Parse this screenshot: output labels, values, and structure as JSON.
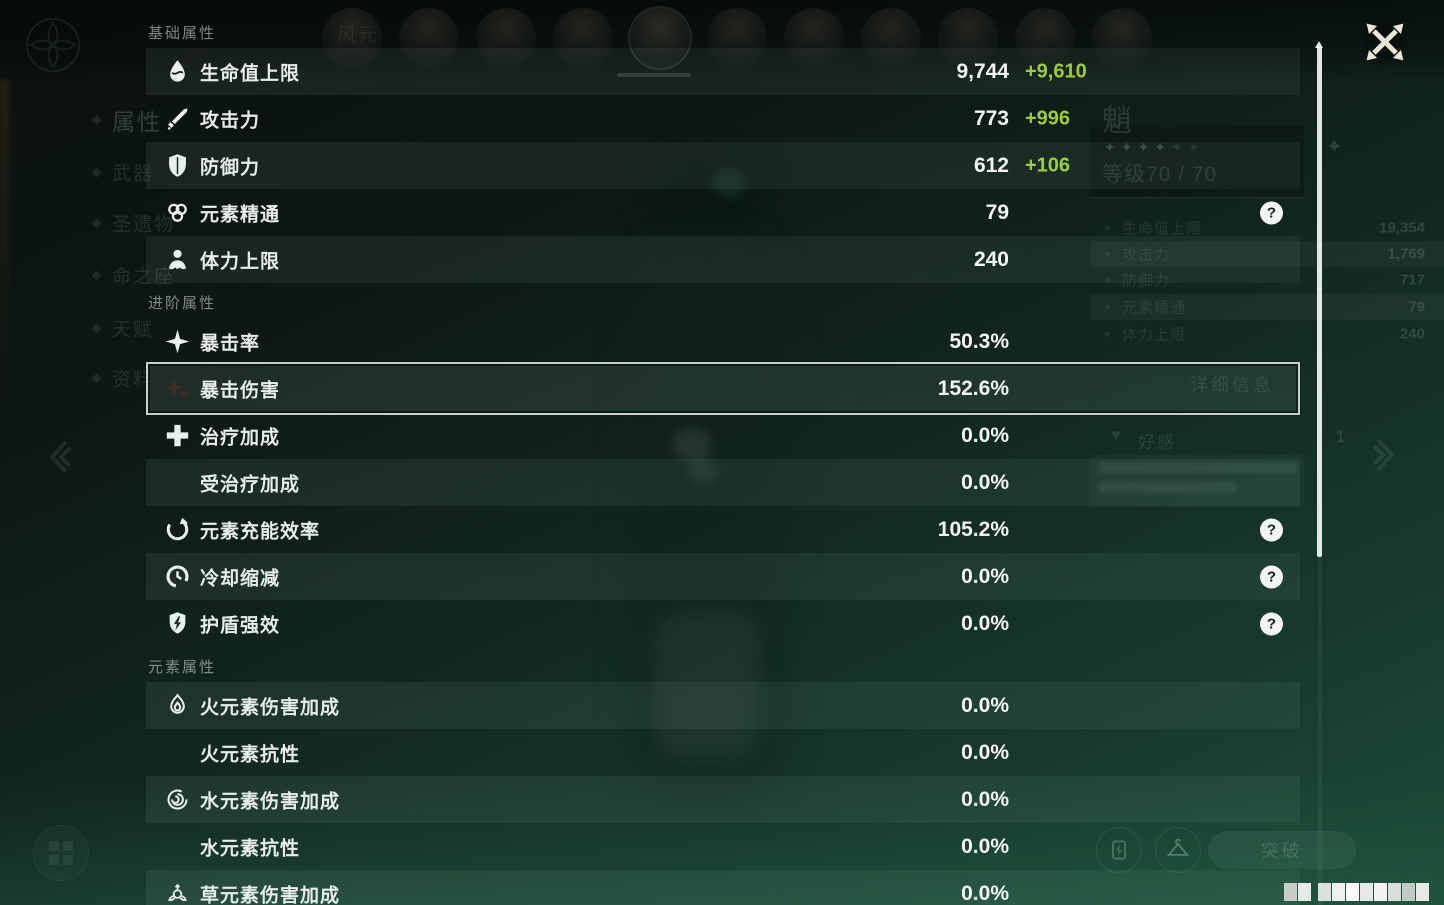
{
  "panel": {
    "sections": [
      {
        "header": "基础属性",
        "rows": [
          {
            "key": "max-hp",
            "icon": "hp-icon",
            "label": "生命值上限",
            "value": "9,744",
            "bonus": "+9,610"
          },
          {
            "key": "atk",
            "icon": "atk-icon",
            "label": "攻击力",
            "value": "773",
            "bonus": "+996"
          },
          {
            "key": "def",
            "icon": "def-icon",
            "label": "防御力",
            "value": "612",
            "bonus": "+106"
          },
          {
            "key": "elemental-mastery",
            "icon": "elemental-mastery-icon",
            "label": "元素精通",
            "value": "79",
            "help": true
          },
          {
            "key": "max-stamina",
            "icon": "stamina-icon",
            "label": "体力上限",
            "value": "240"
          }
        ]
      },
      {
        "header": "进阶属性",
        "rows": [
          {
            "key": "crit-rate",
            "icon": "crit-rate-icon",
            "label": "暴击率",
            "value": "50.3%"
          },
          {
            "key": "crit-dmg",
            "icon": "crit-dmg-icon",
            "label": "暴击伤害",
            "value": "152.6%",
            "highlighted": true
          },
          {
            "key": "healing-bonus",
            "icon": "healing-bonus-icon",
            "label": "治疗加成",
            "value": "0.0%"
          },
          {
            "key": "incoming-healing-bonus",
            "icon": "",
            "label": "受治疗加成",
            "value": "0.0%"
          },
          {
            "key": "energy-recharge",
            "icon": "energy-recharge-icon",
            "label": "元素充能效率",
            "value": "105.2%",
            "help": true
          },
          {
            "key": "cd-reduction",
            "icon": "cd-reduction-icon",
            "label": "冷却缩减",
            "value": "0.0%",
            "help": true
          },
          {
            "key": "shield-strength",
            "icon": "shield-strength-icon",
            "label": "护盾强效",
            "value": "0.0%",
            "help": true
          }
        ]
      },
      {
        "header": "元素属性",
        "rows": [
          {
            "key": "pyro-dmg-bonus",
            "icon": "pyro-icon",
            "label": "火元素伤害加成",
            "value": "0.0%"
          },
          {
            "key": "pyro-res",
            "icon": "",
            "label": "火元素抗性",
            "value": "0.0%"
          },
          {
            "key": "hydro-dmg-bonus",
            "icon": "hydro-icon",
            "label": "水元素伤害加成",
            "value": "0.0%"
          },
          {
            "key": "hydro-res",
            "icon": "",
            "label": "水元素抗性",
            "value": "0.0%"
          },
          {
            "key": "dendro-dmg-bonus",
            "icon": "dendro-icon",
            "label": "草元素伤害加成",
            "value": "0.0%"
          }
        ]
      }
    ]
  },
  "background": {
    "element_label": "风元",
    "sidebar_items": [
      "属性",
      "武器",
      "圣遗物",
      "命之座",
      "天赋",
      "资料"
    ],
    "avatar_count": 11,
    "selected_avatar_index": 4,
    "character": {
      "name": "魈",
      "stars_lit": 4,
      "stars_total": 6,
      "level_label": "等级70 / 70"
    },
    "stats": [
      {
        "label": "生命值上限",
        "value": "19,354"
      },
      {
        "label": "攻击力",
        "value": "1,769"
      },
      {
        "label": "防御力",
        "value": "717"
      },
      {
        "label": "元素精通",
        "value": "79"
      },
      {
        "label": "体力上限",
        "value": "240"
      }
    ],
    "detail_button_label": "详细信息",
    "friendship_label": "好感",
    "friendship_value": "1",
    "ascend_button_label": "突破"
  },
  "colors": {
    "bonus_green": "#9bce3a",
    "highlight_border": "#d6dfdb",
    "help_badge_bg": "#f4f6f5",
    "scrollbar_thumb": "#f2f6f4"
  }
}
